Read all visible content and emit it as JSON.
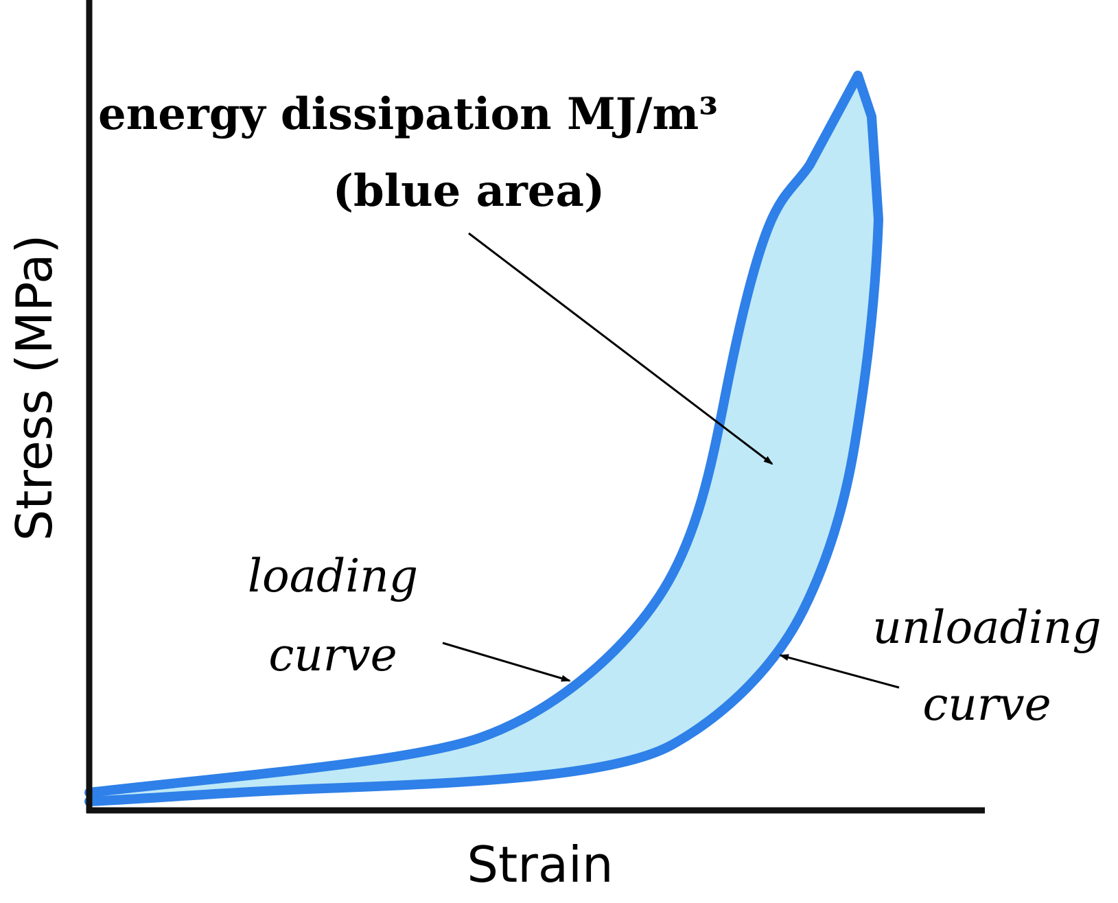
{
  "title": {
    "line1": "energy dissipation MJ/m³",
    "line2": "(blue area)"
  },
  "labels": {
    "loading": {
      "line1": "loading",
      "line2": "curve"
    },
    "unloading": {
      "line1": "unloading",
      "line2": "curve"
    }
  },
  "axes": {
    "x_label": "Strain",
    "y_label": "Stress (MPa)"
  },
  "colors": {
    "curve": "#2f80e8",
    "fill": "#bfe9f7",
    "axis": "#111111",
    "arrow": "#000000"
  }
}
